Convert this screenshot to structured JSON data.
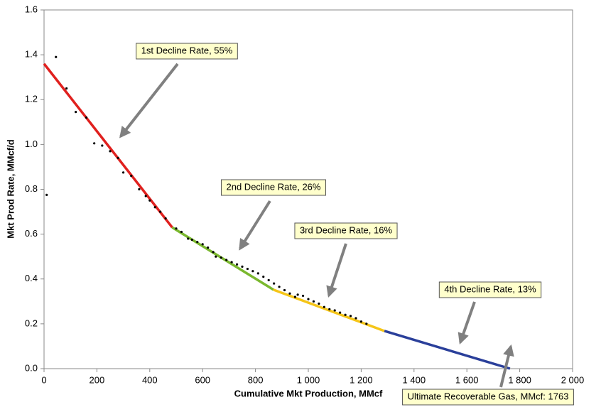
{
  "chart_data": {
    "type": "line",
    "x_label": "Cumulative Mkt Production, MMcf",
    "y_label": "Mkt Prod Rate, MMcf/d",
    "xlim": [
      0,
      2000
    ],
    "ylim": [
      0,
      1.6
    ],
    "xticks": [
      0,
      200,
      400,
      600,
      800,
      {
        "value": 1000,
        "label": "1 000"
      },
      {
        "value": 1200,
        "label": "1 200"
      },
      {
        "value": 1400,
        "label": "1 400"
      },
      {
        "value": 1600,
        "label": "1 600"
      },
      {
        "value": 1800,
        "label": "1 800"
      },
      {
        "value": 2000,
        "label": "2 000"
      }
    ],
    "yticks": [
      {
        "value": 0,
        "label": "0.0"
      },
      0.2,
      0.4,
      0.6,
      0.8,
      {
        "value": 1,
        "label": "1.0"
      },
      1.2,
      1.4,
      1.6
    ],
    "series": [
      {
        "color": "#e0201e",
        "x": [
          0,
          485
        ],
        "values": [
          1.36,
          0.63
        ]
      },
      {
        "color": "#7ab82e",
        "x": [
          485,
          868
        ],
        "values": [
          0.63,
          0.352
        ]
      },
      {
        "color": "#f5c518",
        "x": [
          868,
          1288
        ],
        "values": [
          0.352,
          0.168
        ]
      },
      {
        "color": "#2a3f9a",
        "x": [
          1288,
          1763
        ],
        "values": [
          0.168,
          0
        ]
      }
    ],
    "points": {
      "color": "#000000",
      "x": [
        10,
        45,
        85,
        120,
        160,
        190,
        220,
        250,
        280,
        300,
        330,
        360,
        385,
        400,
        420,
        440,
        460,
        500,
        520,
        545,
        560,
        580,
        600,
        620,
        640,
        650,
        670,
        690,
        710,
        730,
        750,
        770,
        790,
        810,
        830,
        850,
        870,
        890,
        910,
        930,
        950,
        960,
        980,
        1000,
        1020,
        1040,
        1060,
        1080,
        1100,
        1120,
        1140,
        1160,
        1180,
        1200,
        1220
      ],
      "values": [
        0.775,
        1.39,
        1.25,
        1.145,
        1.12,
        1.005,
        0.995,
        0.97,
        0.94,
        0.875,
        0.86,
        0.8,
        0.77,
        0.75,
        0.72,
        0.7,
        0.67,
        0.625,
        0.61,
        0.58,
        0.575,
        0.565,
        0.555,
        0.54,
        0.52,
        0.5,
        0.495,
        0.485,
        0.475,
        0.465,
        0.455,
        0.445,
        0.435,
        0.425,
        0.41,
        0.395,
        0.38,
        0.365,
        0.35,
        0.335,
        0.32,
        0.33,
        0.325,
        0.31,
        0.3,
        0.29,
        0.275,
        0.265,
        0.26,
        0.25,
        0.24,
        0.235,
        0.225,
        0.21,
        0.2
      ]
    },
    "annotations": [
      "1st Decline Rate, 55%",
      "2nd Decline Rate, 26%",
      "3rd Decline Rate, 16%",
      "4th Decline Rate, 13%",
      "Ultimate Recoverable Gas, MMcf: 1763"
    ]
  }
}
